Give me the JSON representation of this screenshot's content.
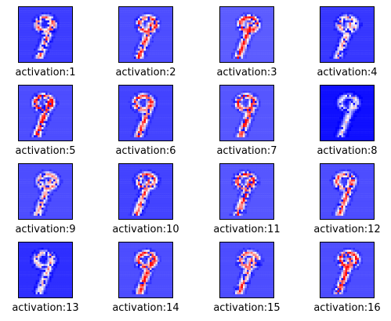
{
  "chart_data": {
    "type": "heatmap",
    "layout": {
      "rows": 4,
      "cols": 4
    },
    "colormap": {
      "name": "bwr",
      "low": "#0000ff",
      "mid": "#ffffff",
      "high": "#ff0000"
    },
    "grid": false,
    "axis_ticks": false,
    "panels": [
      {
        "label": "activation:1",
        "tone": 0.2,
        "ink": 0.55
      },
      {
        "label": "activation:2",
        "tone": 0.25,
        "ink": 0.8
      },
      {
        "label": "activation:3",
        "tone": 0.3,
        "ink": 0.8
      },
      {
        "label": "activation:4",
        "tone": 0.18,
        "ink": 0.35
      },
      {
        "label": "activation:5",
        "tone": 0.25,
        "ink": 0.95
      },
      {
        "label": "activation:6",
        "tone": 0.22,
        "ink": 0.8
      },
      {
        "label": "activation:7",
        "tone": 0.28,
        "ink": 0.85
      },
      {
        "label": "activation:8",
        "tone": 0.05,
        "ink": 0.15
      },
      {
        "label": "activation:9",
        "tone": 0.25,
        "ink": 0.4
      },
      {
        "label": "activation:10",
        "tone": 0.22,
        "ink": 0.6
      },
      {
        "label": "activation:11",
        "tone": 0.28,
        "ink": 0.75
      },
      {
        "label": "activation:12",
        "tone": 0.25,
        "ink": 0.6
      },
      {
        "label": "activation:13",
        "tone": 0.15,
        "ink": 0.3
      },
      {
        "label": "activation:14",
        "tone": 0.25,
        "ink": 0.9
      },
      {
        "label": "activation:15",
        "tone": 0.25,
        "ink": 0.65
      },
      {
        "label": "activation:16",
        "tone": 0.25,
        "ink": 0.9
      }
    ]
  }
}
